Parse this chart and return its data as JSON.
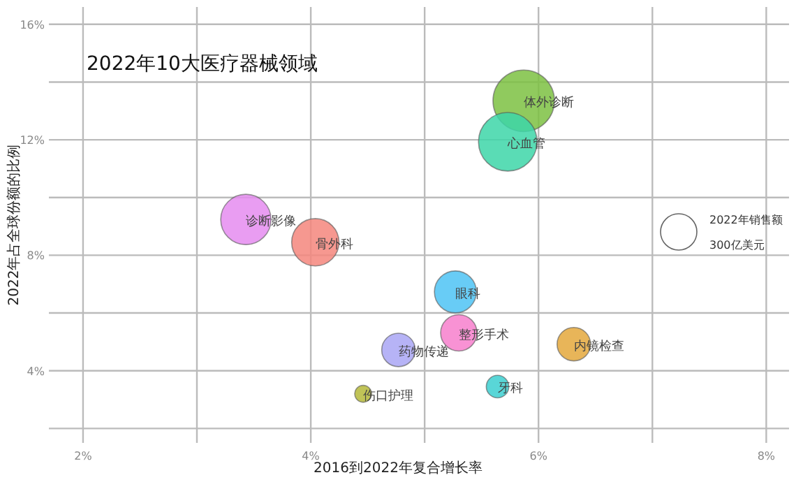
{
  "chart_data": {
    "type": "bubble",
    "title": "2022年10大医疗器械领域",
    "xlabel": "2016到2022年复合增长率",
    "ylabel": "2022年占全球份额的比例",
    "legend_title": "2022年销售额",
    "xlim": [
      1.7,
      8.2
    ],
    "ylim": [
      1.5,
      16.6
    ],
    "xticks": [
      {
        "value": 2,
        "label": "2%"
      },
      {
        "value": 3,
        "label": null
      },
      {
        "value": 4,
        "label": "4%"
      },
      {
        "value": 5,
        "label": null
      },
      {
        "value": 6,
        "label": "6%"
      },
      {
        "value": 7,
        "label": null
      },
      {
        "value": 8,
        "label": "8%"
      }
    ],
    "yticks": [
      {
        "value": 2,
        "label": null
      },
      {
        "value": 4,
        "label": "4%"
      },
      {
        "value": 6,
        "label": null
      },
      {
        "value": 8,
        "label": "8%"
      },
      {
        "value": 10,
        "label": null
      },
      {
        "value": 12,
        "label": "12%"
      },
      {
        "value": 14,
        "label": null
      },
      {
        "value": 16,
        "label": "16%"
      }
    ],
    "grid": true,
    "legend": "right",
    "size_legend": [
      {
        "value": 300,
        "label": "300亿美元"
      }
    ],
    "series": [
      {
        "name": "体外诊断",
        "color": "#7dc142",
        "x": [
          5.87
        ],
        "values": [
          13.35
        ],
        "sizes": [
          860
        ]
      },
      {
        "name": "心血管",
        "color": "#3dd6a8",
        "x": [
          5.73
        ],
        "values": [
          11.93
        ],
        "sizes": [
          780
        ]
      },
      {
        "name": "诊断影像",
        "color": "#e58cf0",
        "x": [
          3.43
        ],
        "values": [
          9.24
        ],
        "sizes": [
          575
        ]
      },
      {
        "name": "骨外科",
        "color": "#f4867c",
        "x": [
          4.04
        ],
        "values": [
          8.45
        ],
        "sizes": [
          510
        ]
      },
      {
        "name": "眼科",
        "color": "#4dc3f5",
        "x": [
          5.27
        ],
        "values": [
          6.73
        ],
        "sizes": [
          400
        ]
      },
      {
        "name": "整形手术",
        "color": "#f77fcc",
        "x": [
          5.3
        ],
        "values": [
          5.31
        ],
        "sizes": [
          300
        ]
      },
      {
        "name": "药物传递",
        "color": "#a9a6f5",
        "x": [
          4.77
        ],
        "values": [
          4.72
        ],
        "sizes": [
          255
        ]
      },
      {
        "name": "内镜检查",
        "color": "#e4a83c",
        "x": [
          6.31
        ],
        "values": [
          4.92
        ],
        "sizes": [
          255
        ]
      },
      {
        "name": "牙科",
        "color": "#3ccfd0",
        "x": [
          5.64
        ],
        "values": [
          3.45
        ],
        "sizes": [
          115
        ]
      },
      {
        "name": "伤口护理",
        "color": "#b5b83a",
        "x": [
          4.46
        ],
        "values": [
          3.2
        ],
        "sizes": [
          65
        ]
      }
    ]
  }
}
